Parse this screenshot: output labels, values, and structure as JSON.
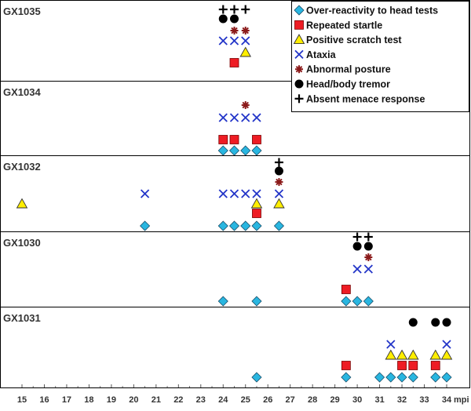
{
  "chart_data": {
    "type": "scatter",
    "x_unit": "mpi",
    "xlim": [
      14.5,
      34.3
    ],
    "x_ticks": [
      15,
      16,
      17,
      18,
      19,
      20,
      21,
      22,
      23,
      24,
      25,
      26,
      27,
      28,
      29,
      30,
      31,
      32,
      33,
      34
    ],
    "categories": [
      {
        "key": "overreact",
        "label": "Over-reactivity to head tests",
        "shape": "diamond",
        "color": "#29b6e0"
      },
      {
        "key": "startle",
        "label": "Repeated startle",
        "shape": "square",
        "color": "#ee1c24"
      },
      {
        "key": "scratch",
        "label": "Positive scratch test",
        "shape": "triangle",
        "color": "#ffee00"
      },
      {
        "key": "ataxia",
        "label": "Ataxia",
        "shape": "x",
        "color": "#2234c8"
      },
      {
        "key": "posture",
        "label": "Abnormal posture",
        "shape": "asterisk",
        "color": "#8b1a1a"
      },
      {
        "key": "tremor",
        "label": "Head/body tremor",
        "shape": "circle",
        "color": "#000000"
      },
      {
        "key": "menace",
        "label": "Absent menace response",
        "shape": "plus",
        "color": "#000000"
      }
    ],
    "panels": [
      {
        "name": "GX1035",
        "points": {
          "menace": [
            24,
            24.5,
            25
          ],
          "tremor": [
            24,
            24.5
          ],
          "posture": [
            24.5,
            25
          ],
          "ataxia": [
            24,
            24.5,
            25
          ],
          "scratch": [
            25
          ],
          "startle": [
            24.5
          ]
        }
      },
      {
        "name": "GX1034",
        "points": {
          "posture": [
            25
          ],
          "ataxia": [
            24,
            24.5,
            25,
            25.5
          ],
          "startle": [
            24,
            24.5,
            25.5
          ],
          "overreact": [
            24,
            24.5,
            25,
            25.5
          ]
        }
      },
      {
        "name": "GX1032",
        "points": {
          "menace": [
            26.5
          ],
          "tremor": [
            26.5
          ],
          "posture": [
            26.5
          ],
          "ataxia": [
            20.5,
            24,
            24.5,
            25,
            25.5,
            26.5
          ],
          "scratch": [
            15,
            25.5,
            26.5
          ],
          "startle": [
            25.5
          ],
          "overreact": [
            20.5,
            24,
            24.5,
            25,
            25.5,
            26.5
          ]
        }
      },
      {
        "name": "GX1030",
        "points": {
          "menace": [
            30,
            30.5
          ],
          "tremor": [
            30,
            30.5
          ],
          "posture": [
            30.5
          ],
          "ataxia": [
            30,
            30.5
          ],
          "startle": [
            29.5
          ],
          "overreact": [
            24,
            25.5,
            29.5,
            30,
            30.5
          ]
        }
      },
      {
        "name": "GX1031",
        "points": {
          "tremor": [
            32.5,
            33.5,
            34
          ],
          "ataxia": [
            31.5,
            34
          ],
          "scratch": [
            31.5,
            32,
            32.5,
            33.5,
            34
          ],
          "startle": [
            29.5,
            32,
            32.5,
            33.5
          ],
          "overreact": [
            25.5,
            29.5,
            31,
            31.5,
            32,
            32.5,
            33.5,
            34
          ]
        }
      }
    ]
  }
}
